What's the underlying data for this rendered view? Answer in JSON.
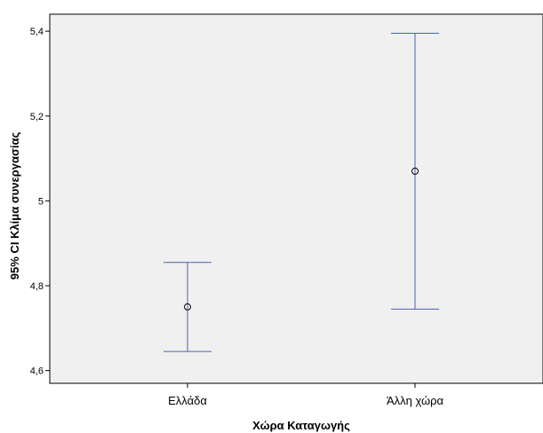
{
  "chart_data": {
    "type": "errorbar",
    "xlabel": "Χώρα Καταγωγής",
    "ylabel": "95% CI Κλίμα συνεργασίας",
    "categories": [
      "Ελλάδα",
      "Άλλη χώρα"
    ],
    "mean": [
      4.75,
      5.07
    ],
    "ci_lower": [
      4.645,
      4.745
    ],
    "ci_upper": [
      4.855,
      5.395
    ],
    "ylim": [
      4.57,
      5.44
    ],
    "yticks": [
      4.6,
      4.8,
      5.0,
      5.2,
      5.4
    ],
    "ytick_labels": [
      "4,6",
      "4,8",
      "5",
      "5,2",
      "5,4"
    ],
    "colors": {
      "plot_background": "#f0f0f0",
      "error_bar": "#4a5fb0",
      "marker": "#000000"
    },
    "grid": false,
    "legend": "none"
  }
}
